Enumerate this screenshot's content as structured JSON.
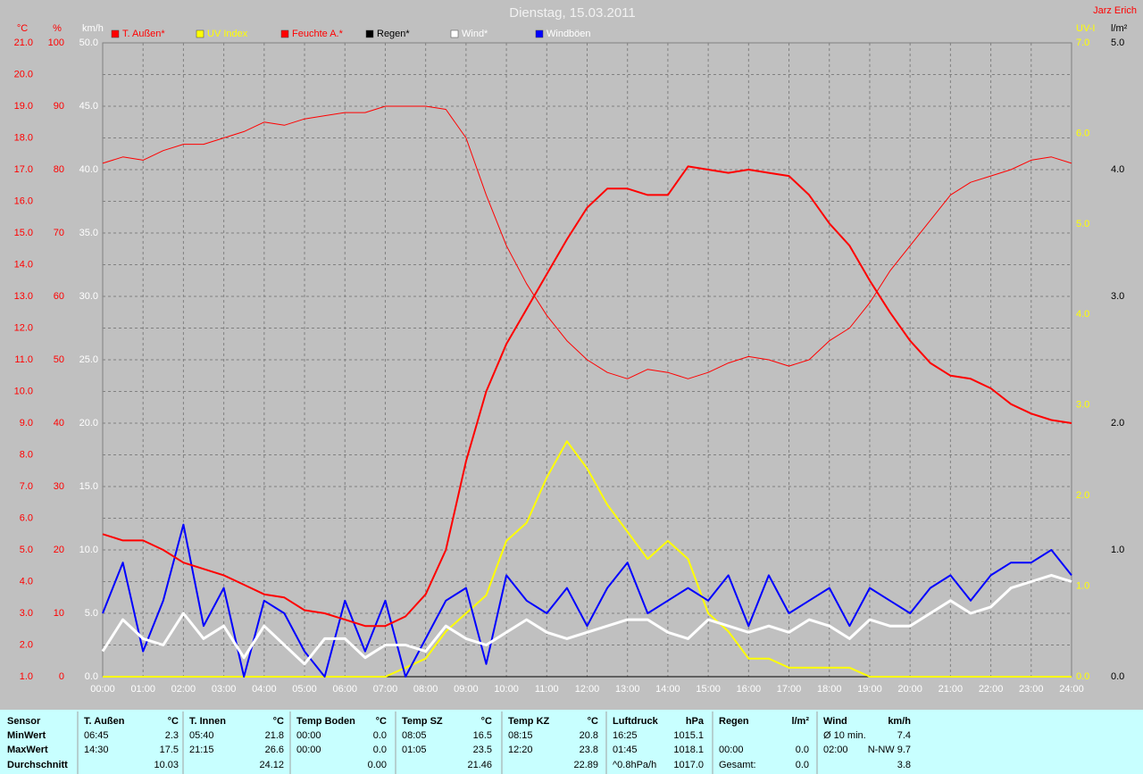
{
  "chart_data": {
    "type": "line",
    "title": "Dienstag, 15.03.2011",
    "author": "Jarz Erich",
    "grid": true,
    "x": [
      0,
      0.5,
      1,
      1.5,
      2,
      2.5,
      3,
      3.5,
      4,
      4.5,
      5,
      5.5,
      6,
      6.5,
      7,
      7.5,
      8,
      8.5,
      9,
      9.5,
      10,
      10.5,
      11,
      11.5,
      12,
      12.5,
      13,
      13.5,
      14,
      14.5,
      15,
      15.5,
      16,
      16.5,
      17,
      17.5,
      18,
      18.5,
      19,
      19.5,
      20,
      20.5,
      21,
      21.5,
      22,
      22.5,
      23,
      23.5,
      24
    ],
    "xlim": [
      0,
      24
    ],
    "xticks": [
      {
        "value": 0,
        "label": "00:00"
      },
      {
        "value": 1,
        "label": "01:00"
      },
      {
        "value": 2,
        "label": "02:00"
      },
      {
        "value": 3,
        "label": "03:00"
      },
      {
        "value": 4,
        "label": "04:00"
      },
      {
        "value": 5,
        "label": "05:00"
      },
      {
        "value": 6,
        "label": "06:00"
      },
      {
        "value": 7,
        "label": "07:00"
      },
      {
        "value": 8,
        "label": "08:00"
      },
      {
        "value": 9,
        "label": "09:00"
      },
      {
        "value": 10,
        "label": "10:00"
      },
      {
        "value": 11,
        "label": "11:00"
      },
      {
        "value": 12,
        "label": "12:00"
      },
      {
        "value": 13,
        "label": "13:00"
      },
      {
        "value": 14,
        "label": "14:00"
      },
      {
        "value": 15,
        "label": "15:00"
      },
      {
        "value": 16,
        "label": "16:00"
      },
      {
        "value": 17,
        "label": "17:00"
      },
      {
        "value": 18,
        "label": "18:00"
      },
      {
        "value": 19,
        "label": "19:00"
      },
      {
        "value": 20,
        "label": "20:00"
      },
      {
        "value": 21,
        "label": "21:00"
      },
      {
        "value": 22,
        "label": "22:00"
      },
      {
        "value": 23,
        "label": "23:00"
      },
      {
        "value": 24,
        "label": "24:00"
      }
    ],
    "axes": [
      {
        "id": "y",
        "label": "°C",
        "color": "#ff0000",
        "lim": [
          1,
          21
        ],
        "ticks": [
          {
            "value": 1,
            "label": "1.0"
          },
          {
            "value": 2,
            "label": "2.0"
          },
          {
            "value": 3,
            "label": "3.0"
          },
          {
            "value": 4,
            "label": "4.0"
          },
          {
            "value": 5,
            "label": "5.0"
          },
          {
            "value": 6,
            "label": "6.0"
          },
          {
            "value": 7,
            "label": "7.0"
          },
          {
            "value": 8,
            "label": "8.0"
          },
          {
            "value": 9,
            "label": "9.0"
          },
          {
            "value": 10,
            "label": "10.0"
          },
          {
            "value": 11,
            "label": "11.0"
          },
          {
            "value": 12,
            "label": "12.0"
          },
          {
            "value": 13,
            "label": "13.0"
          },
          {
            "value": 14,
            "label": "14.0"
          },
          {
            "value": 15,
            "label": "15.0"
          },
          {
            "value": 16,
            "label": "16.0"
          },
          {
            "value": 17,
            "label": "17.0"
          },
          {
            "value": 18,
            "label": "18.0"
          },
          {
            "value": 19,
            "label": "19.0"
          },
          {
            "value": 20,
            "label": "20.0"
          },
          {
            "value": 21,
            "label": "21.0"
          }
        ]
      },
      {
        "id": "y2",
        "label": "%",
        "color": "#ff0000",
        "lim": [
          0,
          100
        ],
        "ticks": [
          0,
          10,
          20,
          30,
          40,
          50,
          60,
          70,
          80,
          90,
          100
        ]
      },
      {
        "id": "y3",
        "label": "km/h",
        "color": "#ffffff",
        "lim": [
          0,
          50
        ],
        "ticks": [
          {
            "value": 0,
            "label": "0.0"
          },
          {
            "value": 5,
            "label": "5.0"
          },
          {
            "value": 10,
            "label": "10.0"
          },
          {
            "value": 15,
            "label": "15.0"
          },
          {
            "value": 20,
            "label": "20.0"
          },
          {
            "value": 25,
            "label": "25.0"
          },
          {
            "value": 30,
            "label": "30.0"
          },
          {
            "value": 35,
            "label": "35.0"
          },
          {
            "value": 40,
            "label": "40.0"
          },
          {
            "value": 45,
            "label": "45.0"
          },
          {
            "value": 50,
            "label": "50.0"
          }
        ]
      },
      {
        "id": "y4",
        "label": "UV-I",
        "color": "#ffff00",
        "lim": [
          0,
          7
        ],
        "ticks": [
          {
            "value": 0,
            "label": "0.0"
          },
          {
            "value": 1,
            "label": "1.0"
          },
          {
            "value": 2,
            "label": "2.0"
          },
          {
            "value": 3,
            "label": "3.0"
          },
          {
            "value": 4,
            "label": "4.0"
          },
          {
            "value": 5,
            "label": "5.0"
          },
          {
            "value": 6,
            "label": "6.0"
          },
          {
            "value": 7,
            "label": "7.0"
          }
        ]
      },
      {
        "id": "y5",
        "label": "l/m²",
        "color": "#000000",
        "lim": [
          0,
          5
        ],
        "ticks": [
          {
            "value": 0,
            "label": "0.0"
          },
          {
            "value": 1,
            "label": "1.0"
          },
          {
            "value": 2,
            "label": "2.0"
          },
          {
            "value": 3,
            "label": "3.0"
          },
          {
            "value": 4,
            "label": "4.0"
          },
          {
            "value": 5,
            "label": "5.0"
          }
        ]
      }
    ],
    "series": [
      {
        "name": "T. Außen*",
        "color": "#ff0000",
        "legend_color": "#ff0000",
        "width": 2,
        "axis": "y",
        "values": [
          5.5,
          5.3,
          5.3,
          5.0,
          4.6,
          4.4,
          4.2,
          3.9,
          3.6,
          3.5,
          3.1,
          3.0,
          2.8,
          2.6,
          2.6,
          2.9,
          3.6,
          5.0,
          7.8,
          10.0,
          11.5,
          12.6,
          13.7,
          14.8,
          15.8,
          16.4,
          16.4,
          16.2,
          16.2,
          17.1,
          17.0,
          16.9,
          17.0,
          16.9,
          16.8,
          16.2,
          15.3,
          14.6,
          13.5,
          12.5,
          11.6,
          10.9,
          10.5,
          10.4,
          10.1,
          9.6,
          9.3,
          9.1,
          9.0
        ]
      },
      {
        "name": "UV Index",
        "color": "#ffff00",
        "legend_color": "#ffff00",
        "width": 2,
        "axis": "y4",
        "values": [
          0,
          0,
          0,
          0,
          0,
          0,
          0,
          0,
          0,
          0,
          0,
          0,
          0,
          0,
          0,
          0.1,
          0.2,
          0.5,
          0.7,
          0.9,
          1.5,
          1.7,
          2.2,
          2.6,
          2.3,
          1.9,
          1.6,
          1.3,
          1.5,
          1.3,
          0.7,
          0.5,
          0.2,
          0.2,
          0.1,
          0.1,
          0.1,
          0.1,
          0,
          0,
          0,
          0,
          0,
          0,
          0,
          0,
          0,
          0,
          0
        ]
      },
      {
        "name": "Feuchte A.*",
        "color": "#ff0000",
        "legend_color": "#ff0000",
        "width": 1,
        "axis": "y2",
        "values": [
          81,
          82,
          81.5,
          83,
          84,
          84,
          85,
          86,
          87.5,
          87,
          88,
          88.5,
          89,
          89,
          90,
          90,
          90,
          89.5,
          85,
          76,
          68,
          62,
          57,
          53,
          50,
          48,
          47,
          48.5,
          48,
          47,
          48,
          49.5,
          50.5,
          50,
          49,
          50,
          53,
          55,
          59,
          64,
          68,
          72,
          76,
          78,
          79,
          80,
          81.5,
          82,
          81
        ]
      },
      {
        "name": "Regen*",
        "color": "#000000",
        "legend_color": "#000000",
        "width": 1,
        "axis": "y5",
        "values": [
          0,
          0,
          0,
          0,
          0,
          0,
          0,
          0,
          0,
          0,
          0,
          0,
          0,
          0,
          0,
          0,
          0,
          0,
          0,
          0,
          0,
          0,
          0,
          0,
          0,
          0,
          0,
          0,
          0,
          0,
          0,
          0,
          0,
          0,
          0,
          0,
          0,
          0,
          0,
          0,
          0,
          0,
          0,
          0,
          0,
          0,
          0,
          0,
          0
        ]
      },
      {
        "name": "Wind*",
        "color": "#ffffff",
        "legend_color": "#ffffff",
        "width": 3,
        "axis": "y3",
        "values": [
          2,
          4.5,
          3,
          2.5,
          5,
          3,
          4,
          1.5,
          4,
          2.5,
          1,
          3,
          3,
          1.5,
          2.5,
          2.5,
          2,
          4,
          3,
          2.5,
          3.5,
          4.5,
          3.5,
          3,
          3.5,
          4,
          4.5,
          4.5,
          3.5,
          3,
          4.5,
          4,
          3.5,
          4,
          3.5,
          4.5,
          4,
          3,
          4.5,
          4,
          4,
          5,
          6,
          5,
          5.5,
          7,
          7.5,
          8,
          7.5
        ]
      },
      {
        "name": "Windböen",
        "color": "#0000ff",
        "legend_color": "#ffffff",
        "width": 2,
        "axis": "y3",
        "values": [
          5,
          9,
          2,
          6,
          12,
          4,
          7,
          0,
          6,
          5,
          2,
          0,
          6,
          2,
          6,
          0,
          3,
          6,
          7,
          1,
          8,
          6,
          5,
          7,
          4,
          7,
          9,
          5,
          6,
          7,
          6,
          8,
          4,
          8,
          5,
          6,
          7,
          4,
          7,
          6,
          5,
          7,
          8,
          6,
          8,
          9,
          9,
          10,
          8
        ]
      }
    ]
  },
  "table": {
    "sensor_label": "Sensor",
    "row_labels": [
      "MinWert",
      "MaxWert",
      "Durchschnitt"
    ],
    "groups": [
      {
        "title": "T. Außen",
        "unit": "°C",
        "rows": [
          {
            "time": "06:45",
            "value": "2.3"
          },
          {
            "time": "14:30",
            "value": "17.5"
          },
          {
            "value": "10.03"
          }
        ]
      },
      {
        "title": "T. Innen",
        "unit": "°C",
        "rows": [
          {
            "time": "05:40",
            "value": "21.8"
          },
          {
            "time": "21:15",
            "value": "26.6"
          },
          {
            "value": "24.12"
          }
        ]
      },
      {
        "title": "Temp Boden",
        "unit": "°C",
        "rows": [
          {
            "time": "00:00",
            "value": "0.0"
          },
          {
            "time": "00:00",
            "value": "0.0"
          },
          {
            "value": "0.00"
          }
        ]
      },
      {
        "title": "Temp SZ",
        "unit": "°C",
        "rows": [
          {
            "time": "08:05",
            "value": "16.5"
          },
          {
            "time": "01:05",
            "value": "23.5"
          },
          {
            "value": "21.46"
          }
        ]
      },
      {
        "title": "Temp KZ",
        "unit": "°C",
        "rows": [
          {
            "time": "08:15",
            "value": "20.8"
          },
          {
            "time": "12:20",
            "value": "23.8"
          },
          {
            "value": "22.89"
          }
        ]
      },
      {
        "title": "Luftdruck",
        "unit": "hPa",
        "rows": [
          {
            "time": "16:25",
            "value": "1015.1"
          },
          {
            "time": "01:45",
            "value": "1018.1"
          },
          {
            "time": "^0.8hPa/h",
            "value": "1017.0"
          }
        ]
      },
      {
        "title": "Regen",
        "unit": "l/m²",
        "rows": [
          {},
          {
            "time": "00:00",
            "value": "0.0"
          },
          {
            "time": "Gesamt:",
            "value": "0.0"
          }
        ]
      },
      {
        "title": "Wind",
        "unit": "km/h",
        "rows": [
          {
            "time": "Ø 10 min.",
            "value": "7.4"
          },
          {
            "time": "02:00",
            "value": "N-NW 9.7"
          },
          {
            "value": "3.8"
          }
        ]
      }
    ]
  }
}
